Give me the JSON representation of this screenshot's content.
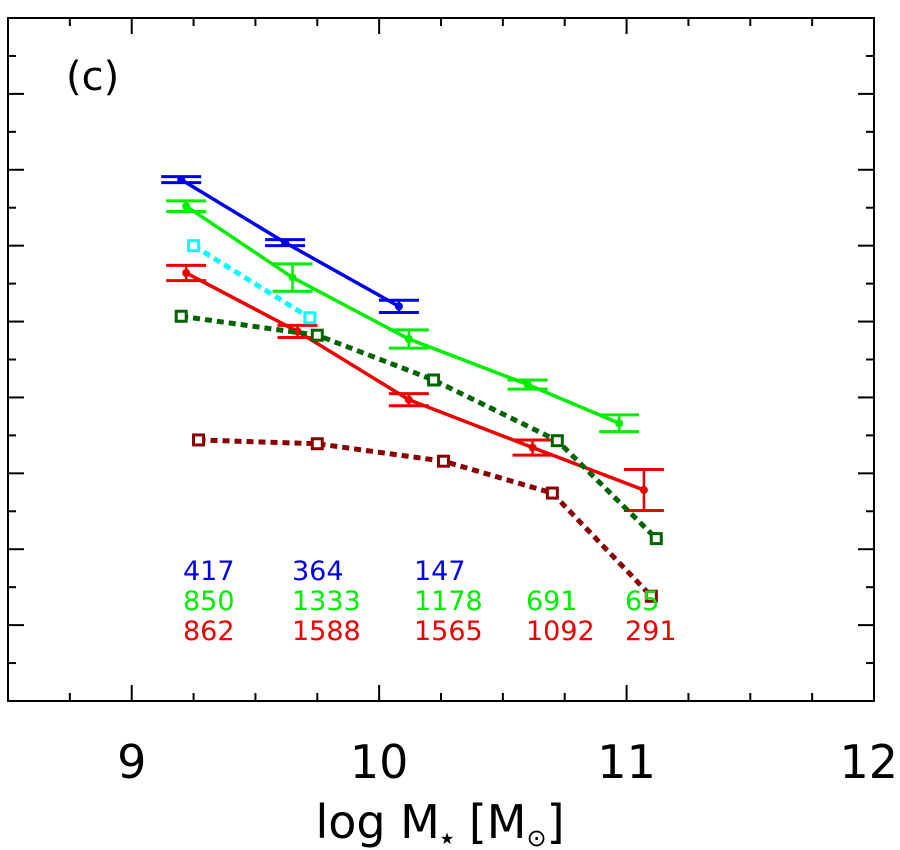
{
  "chart_data": {
    "type": "line",
    "panel_label": "(c)",
    "xlabel": "log M",
    "xlabel_sub": "★",
    "xlabel_unit_open": " [M",
    "xlabel_unit_sub": "⊙",
    "xlabel_unit_close": "]",
    "xlim": [
      8.5,
      12
    ],
    "ylim": [
      0,
      9
    ],
    "x_ticks": [
      9,
      10,
      11,
      12
    ],
    "x_tick_labels": [
      "9",
      "10",
      "11",
      "12"
    ],
    "x_minor_step": 0.25,
    "y_minor_step": 0.5,
    "y_tick_labels_shown": false,
    "grid": false,
    "series": [
      {
        "color": "#0000ee",
        "style": "solid",
        "marker": "dot",
        "x": [
          9.2,
          9.62,
          10.08
        ],
        "y": [
          6.87,
          6.04,
          5.2
        ],
        "err": [
          0.04,
          0.04,
          0.08
        ],
        "counts": [
          "417",
          "364",
          "147"
        ]
      },
      {
        "color": "#00ee00",
        "style": "solid",
        "marker": "dot",
        "x": [
          9.22,
          9.65,
          10.12,
          10.6,
          10.97
        ],
        "y": [
          6.52,
          5.58,
          4.77,
          4.17,
          3.66
        ],
        "err": [
          0.07,
          0.18,
          0.12,
          0.06,
          0.11
        ],
        "counts": [
          "850",
          "1333",
          "1178",
          "691",
          "65"
        ]
      },
      {
        "color": "#ee0000",
        "style": "solid",
        "marker": "dot",
        "x": [
          9.22,
          9.67,
          10.12,
          10.62,
          11.07
        ],
        "y": [
          5.64,
          4.87,
          3.97,
          3.34,
          2.78
        ],
        "err": [
          0.1,
          0.08,
          0.08,
          0.1,
          0.27
        ],
        "counts": [
          "862",
          "1588",
          "1565",
          "1092",
          "291"
        ]
      },
      {
        "color": "#00ffff",
        "style": "dotted",
        "marker": "square",
        "x": [
          9.25,
          9.72
        ],
        "y": [
          6.0,
          5.05
        ]
      },
      {
        "color": "#006400",
        "style": "dotted",
        "marker": "square",
        "x": [
          9.2,
          9.75,
          10.22,
          10.72,
          11.12
        ],
        "y": [
          5.07,
          4.82,
          4.23,
          3.43,
          2.14
        ]
      },
      {
        "color": "#8b0000",
        "style": "dotted",
        "marker": "square",
        "x": [
          9.27,
          9.75,
          10.26,
          10.7,
          11.1
        ],
        "y": [
          3.44,
          3.39,
          3.16,
          2.74,
          1.38
        ]
      }
    ]
  }
}
